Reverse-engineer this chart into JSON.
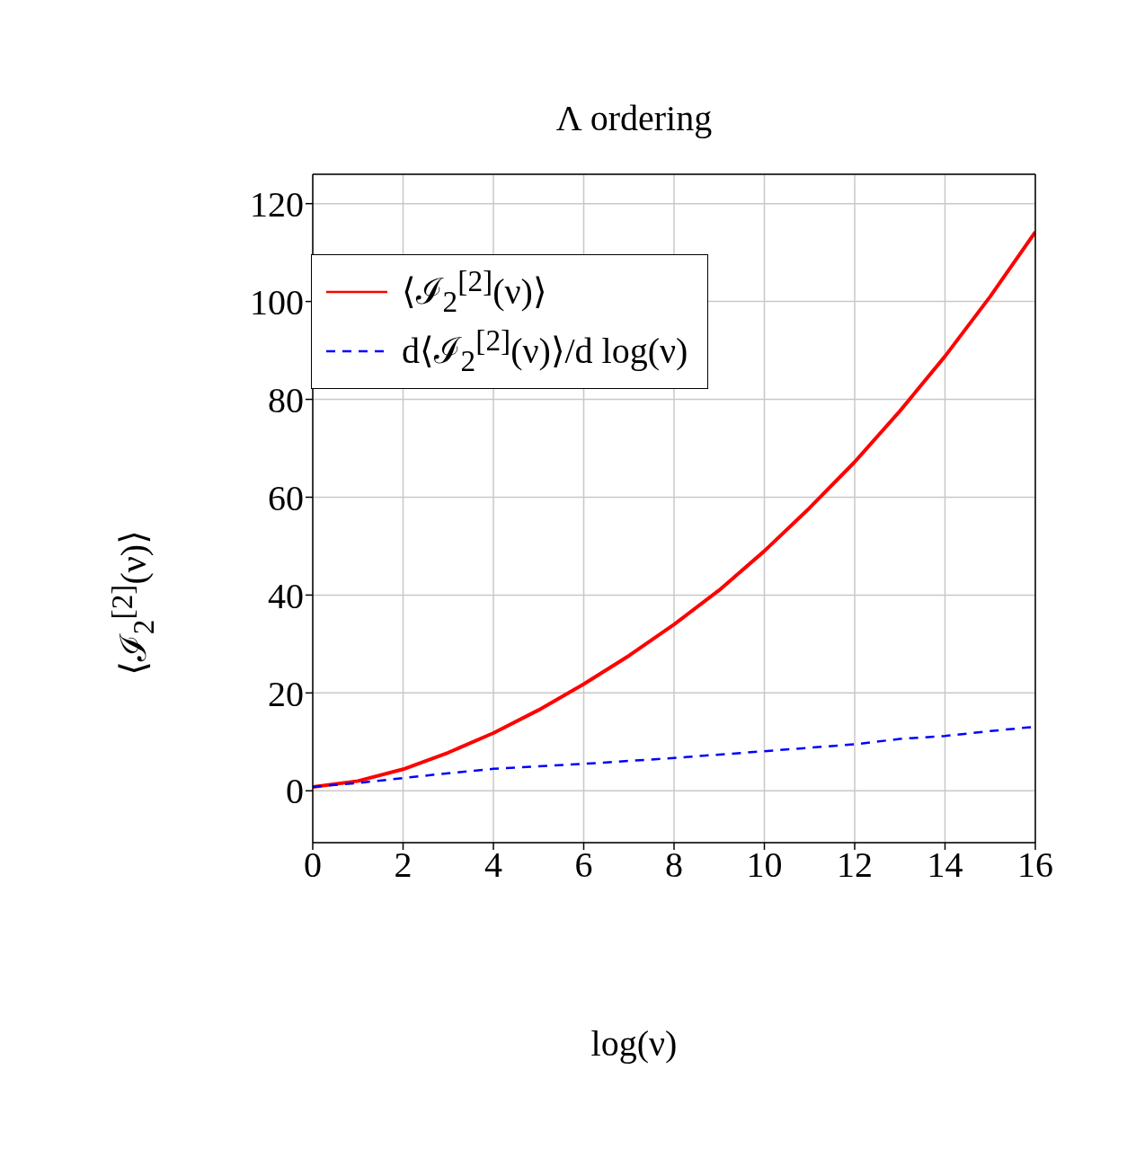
{
  "chart_data": {
    "type": "line",
    "title": "Λ ordering",
    "xlabel": "log(ν)",
    "ylabel": "⟨ℐ$_{2}$$^{[2]}$(ν)⟩",
    "x": [
      0,
      1,
      2,
      3,
      4,
      5,
      6,
      7,
      8,
      9,
      10,
      11,
      12,
      13,
      14,
      15,
      16
    ],
    "series": [
      {
        "name": "⟨ℐ$_{2}$$^{[2]}$(ν)⟩",
        "color": "#ff0000",
        "line_style": "solid",
        "values": [
          0.8,
          2,
          4.4,
          7.8,
          11.8,
          16.5,
          21.8,
          27.6,
          34,
          41,
          49,
          57.8,
          67.2,
          77.6,
          88.8,
          101,
          114.2
        ]
      },
      {
        "name": "d⟨ℐ$_{2}$$^{[2]}$(ν)⟩/d log(ν)",
        "color": "#0000ff",
        "line_style": "dashed",
        "values": [
          0.8,
          1.6,
          2.6,
          3.6,
          4.5,
          5,
          5.5,
          6.1,
          6.7,
          7.4,
          8.1,
          8.8,
          9.5,
          10.6,
          11.2,
          12.2,
          13.1
        ]
      }
    ],
    "xlim": [
      0,
      16
    ],
    "xticks": [
      0,
      2,
      4,
      6,
      8,
      10,
      12,
      14,
      16
    ],
    "ylim": [
      -10.6,
      126
    ],
    "yticks": [
      0,
      20,
      40,
      60,
      80,
      100,
      120
    ],
    "grid": true,
    "legend": "top left",
    "marker": "none"
  }
}
